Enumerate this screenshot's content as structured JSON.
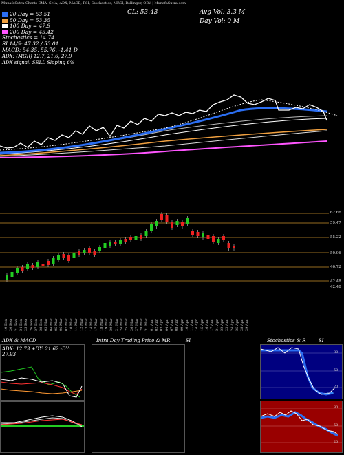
{
  "header": {
    "strip_text": "MunafaSutra Charts EMA, SMA, ADX, MACD, RSI, Stochastics, MRSI, Bollinger, OBV | MunafaSutra.com",
    "close_label": "CL: 53.43",
    "avg_volume": "Avg Vol: 3.3  M",
    "day_volume": "Day Vol: 0   M"
  },
  "legend": {
    "ma20": "20 Day = 53.51",
    "ma50": "50 Day = 53.35",
    "ma100": "100 Day = 47.9",
    "ma200": "200 Day = 45.42",
    "stoch": "Stochastics = 14.74",
    "si": "SI 14/5: 47.32 / 53.01",
    "macd": "MACD: 54.35, 55.76, -1.41 D",
    "adx": "ADX:                     (MGR) 12.7, 21.6, 27.9",
    "adx_signal": "ADX  signal: SELL  Sloping 6%"
  },
  "colors": {
    "ma20": "#2b6ef2",
    "ma50": "#f0a040",
    "ma100": "#ffffff",
    "ma200": "#ff55ff",
    "up_candle": "#22cc22",
    "down_candle": "#ee2222",
    "level_line": "#c8902a",
    "stoch_bg": "#000080",
    "rsi_bg": "#990000"
  },
  "price_levels": [
    "62.66",
    "59.47",
    "55.22",
    "50.96",
    "46.72",
    "42.48",
    "42.48"
  ],
  "dates": [
    "19 Feb",
    "20 Feb",
    "21 Feb",
    "24 Feb",
    "25 Feb",
    "26 Feb",
    "27 Feb",
    "28 Feb",
    "03 Mar",
    "04 Mar",
    "05 Mar",
    "06 Mar",
    "07 Mar",
    "10 Mar",
    "11 Mar",
    "12 Mar",
    "13 Mar",
    "14 Mar",
    "17 Mar",
    "18 Mar",
    "19 Mar",
    "20 Mar",
    "21 Mar",
    "24 Mar",
    "25 Mar",
    "26 Mar",
    "27 Mar",
    "28 Mar",
    "31 Mar",
    "01 Apr",
    "02 Apr",
    "03 Apr",
    "04 Apr",
    "07 Apr",
    "08 Apr",
    "09 Apr",
    "10 Apr",
    "11 Apr",
    "14 Apr",
    "15 Apr",
    "16 Apr",
    "17 Apr",
    "21 Apr",
    "22 Apr",
    "23 Apr",
    "24 Apr",
    "25 Apr",
    "28 Apr",
    "29 Apr"
  ],
  "panels": {
    "adx_title": "ADX  & MACD",
    "adx_readout": "ADX: 12.73  +DY: 21.62  -DY: 27.93",
    "intraday_title": "Intra  Day  Trading Price  & MR",
    "intraday_si": "SI",
    "stoch_title": "Stochastics & R",
    "stoch_si": "SI",
    "stoch_ticks": [
      "80",
      "50",
      "20"
    ],
    "stoch_value": "14.74",
    "rsi_ticks": [
      "80",
      "50",
      "20"
    ]
  }
}
